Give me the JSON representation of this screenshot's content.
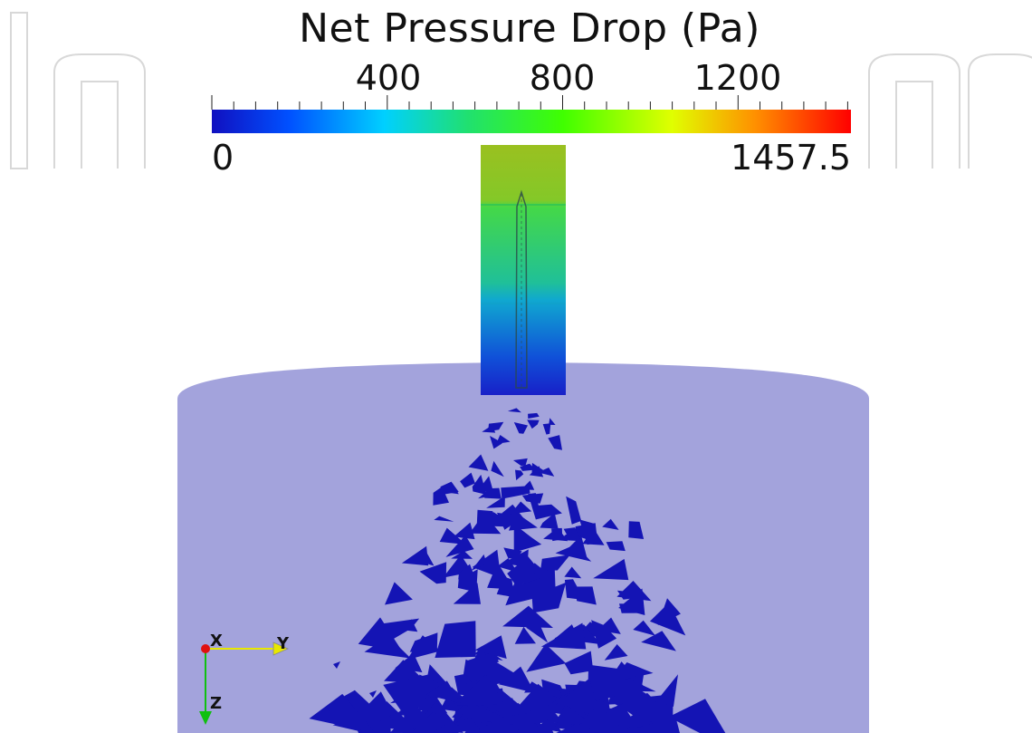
{
  "colorbar": {
    "title": "Net Pressure Drop (Pa)",
    "min_label": "0",
    "max_label": "1457.5",
    "min_value": 0,
    "max_value": 1457.5,
    "ticks": [
      {
        "value": 400,
        "label": "400"
      },
      {
        "value": 800,
        "label": "800"
      },
      {
        "value": 1200,
        "label": "1200"
      }
    ],
    "colormap": [
      "#1010c0",
      "#0050ff",
      "#00d0ff",
      "#20e060",
      "#40ff00",
      "#e0ff00",
      "#ff9000",
      "#ff2000",
      "#ff0000"
    ]
  },
  "orientation_axes": {
    "x_label": "X",
    "y_label": "Y",
    "z_label": "Z",
    "x_color": "#e01010",
    "y_color": "#e8e800",
    "z_color": "#10c010"
  },
  "scene": {
    "vessel_color": "#a3a3dc",
    "fragment_color": "#1414b4",
    "inlet_colors": {
      "top": "#8cc020",
      "upper": "#40d848",
      "middle": "#18b0c8",
      "bottom": "#1030d0"
    }
  }
}
